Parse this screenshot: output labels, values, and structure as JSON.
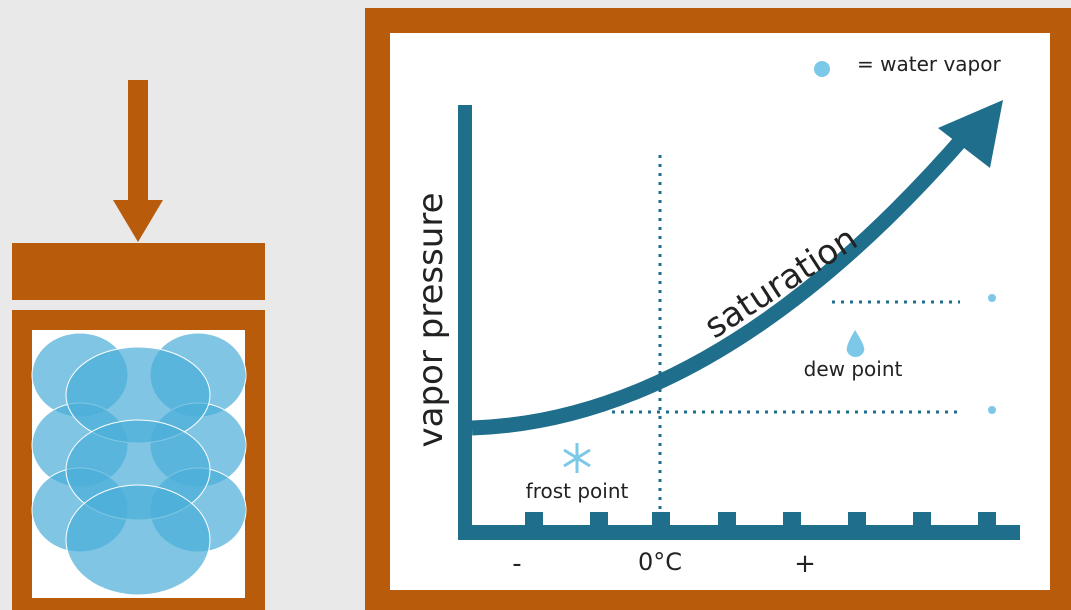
{
  "legend": {
    "label": "= water vapor"
  },
  "axis": {
    "y_label": "vapor pressure",
    "x_labels": [
      "-",
      "0°C",
      "+"
    ]
  },
  "curve": {
    "label": "saturation"
  },
  "annotations": {
    "dew_point": "dew point",
    "frost_point": "frost point"
  }
}
